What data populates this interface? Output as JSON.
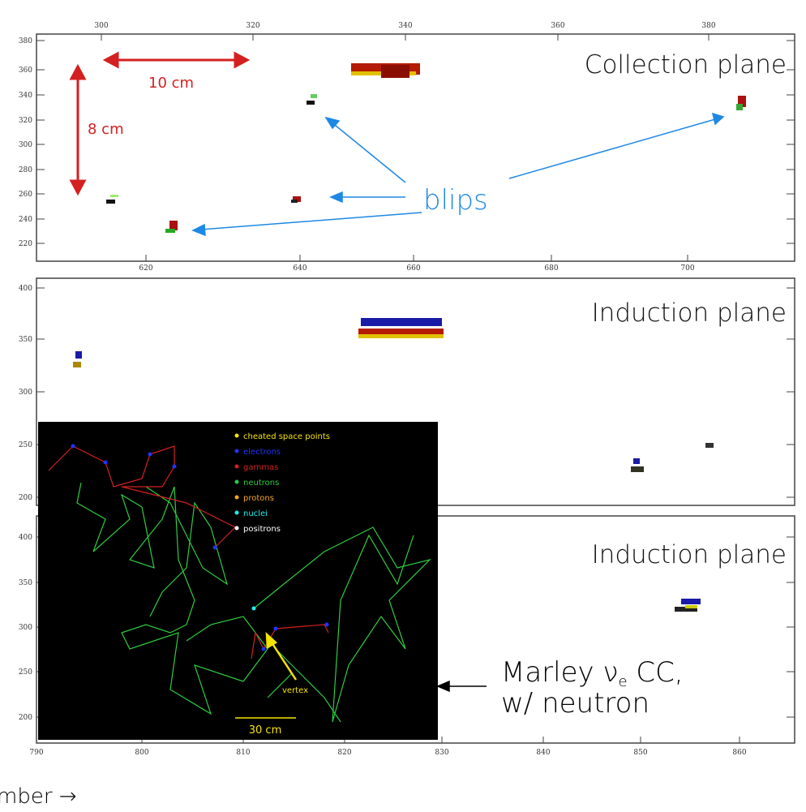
{
  "panels": [
    {
      "label": "Collection plane",
      "top_ticks": [
        "300",
        "320",
        "340",
        "360",
        "380"
      ],
      "left_ticks": [
        "380",
        "360",
        "340",
        "320",
        "300",
        "280",
        "260",
        "240",
        "220"
      ],
      "bottom_ticks": [
        "620",
        "640",
        "660",
        "680",
        "700"
      ]
    },
    {
      "label": "Induction plane",
      "left_ticks": [
        "400",
        "350",
        "300",
        "250",
        "200"
      ]
    },
    {
      "label": "Induction plane",
      "left_ticks": [
        "400",
        "350",
        "300",
        "250",
        "200"
      ],
      "bottom_ticks": [
        "790",
        "800",
        "810",
        "820",
        "830",
        "840",
        "850",
        "860"
      ]
    }
  ],
  "annotations": {
    "length_x": "10 cm",
    "length_y": "8 cm",
    "blips": "blips"
  },
  "inset": {
    "legend": [
      "cheated space points",
      "electrons",
      "gammas",
      "neutrons",
      "protons",
      "nuclei",
      "positrons"
    ],
    "vertex": "vertex",
    "scale": "30 cm"
  },
  "caption": {
    "line1_main": "Marley ν",
    "line1_sub": "e",
    "line1_rest": " CC,",
    "line2": "w/ neutron"
  },
  "axis_label": "mber →"
}
